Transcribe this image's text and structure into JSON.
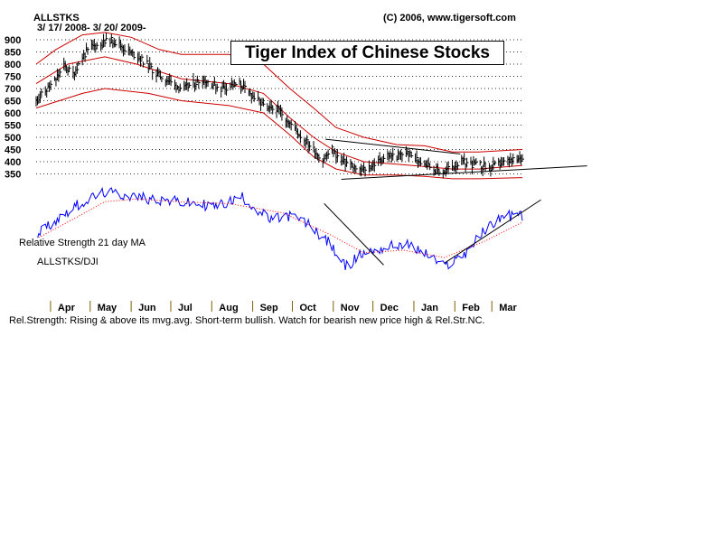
{
  "header": {
    "ticker": "ALLSTKS",
    "date_range": "3/ 17/ 2008- 3/ 20/ 2009-",
    "copyright": "(C) 2006, www.tigersoft.com"
  },
  "title": "Tiger Index of Chinese Stocks",
  "rs_labels": {
    "ma_label": "Relative Strength 21 day MA",
    "ratio_label": "ALLSTKS/DJI"
  },
  "footer_text": "Rel.Strength: Rising & above its mvg.avg. Short-term bullish. Watch for bearish new price high & Rel.Str.NC.",
  "colors": {
    "price_bars": "#000000",
    "bands": "#cc0000",
    "rs_line": "#0000ff",
    "rs_ma": "#ff0000",
    "grid": "#000000"
  },
  "chart_data": [
    {
      "type": "ohlc-bar",
      "title": "Tiger Index of Chinese Stocks",
      "y_ticks": [
        350,
        400,
        450,
        500,
        550,
        600,
        650,
        700,
        750,
        800,
        850,
        900
      ],
      "ylim": [
        300,
        900
      ],
      "x_ticks": [
        "Apr",
        "May",
        "Jun",
        "Jul",
        "Aug",
        "Sep",
        "Oct",
        "Nov",
        "Dec",
        "Jan",
        "Feb",
        "Mar"
      ],
      "grid": "horizontal dotted",
      "price_points": [
        [
          "2008-03-17",
          650
        ],
        [
          "2008-03-24",
          690
        ],
        [
          "2008-03-31",
          730
        ],
        [
          "2008-04-07",
          790
        ],
        [
          "2008-04-14",
          760
        ],
        [
          "2008-04-21",
          830
        ],
        [
          "2008-04-28",
          870
        ],
        [
          "2008-05-05",
          880
        ],
        [
          "2008-05-12",
          900
        ],
        [
          "2008-05-19",
          880
        ],
        [
          "2008-05-26",
          850
        ],
        [
          "2008-06-02",
          830
        ],
        [
          "2008-06-09",
          800
        ],
        [
          "2008-06-16",
          760
        ],
        [
          "2008-06-23",
          740
        ],
        [
          "2008-06-30",
          710
        ],
        [
          "2008-07-07",
          700
        ],
        [
          "2008-07-14",
          720
        ],
        [
          "2008-07-21",
          740
        ],
        [
          "2008-07-28",
          720
        ],
        [
          "2008-08-04",
          700
        ],
        [
          "2008-08-11",
          710
        ],
        [
          "2008-08-18",
          720
        ],
        [
          "2008-08-25",
          680
        ],
        [
          "2008-09-01",
          650
        ],
        [
          "2008-09-08",
          610
        ],
        [
          "2008-09-15",
          620
        ],
        [
          "2008-09-22",
          580
        ],
        [
          "2008-09-29",
          530
        ],
        [
          "2008-10-06",
          490
        ],
        [
          "2008-10-13",
          450
        ],
        [
          "2008-10-20",
          410
        ],
        [
          "2008-10-27",
          450
        ],
        [
          "2008-11-03",
          400
        ],
        [
          "2008-11-10",
          390
        ],
        [
          "2008-11-17",
          360
        ],
        [
          "2008-11-24",
          380
        ],
        [
          "2008-12-01",
          400
        ],
        [
          "2008-12-08",
          430
        ],
        [
          "2008-12-15",
          420
        ],
        [
          "2008-12-22",
          440
        ],
        [
          "2008-12-29",
          410
        ],
        [
          "2009-01-05",
          395
        ],
        [
          "2009-01-12",
          370
        ],
        [
          "2009-01-19",
          360
        ],
        [
          "2009-01-26",
          380
        ],
        [
          "2009-02-02",
          400
        ],
        [
          "2009-02-09",
          390
        ],
        [
          "2009-02-16",
          385
        ],
        [
          "2009-02-23",
          370
        ],
        [
          "2009-03-02",
          390
        ],
        [
          "2009-03-09",
          400
        ],
        [
          "2009-03-20",
          410
        ]
      ],
      "upper_band": [
        [
          "2008-03-17",
          800
        ],
        [
          "2008-04-01",
          860
        ],
        [
          "2008-04-21",
          920
        ],
        [
          "2008-05-08",
          930
        ],
        [
          "2008-05-28",
          910
        ],
        [
          "2008-06-18",
          860
        ],
        [
          "2008-07-05",
          840
        ],
        [
          "2008-08-10",
          840
        ],
        [
          "2008-09-05",
          800
        ],
        [
          "2008-09-25",
          700
        ],
        [
          "2008-10-13",
          620
        ],
        [
          "2008-10-30",
          540
        ],
        [
          "2008-11-20",
          500
        ],
        [
          "2008-12-15",
          470
        ],
        [
          "2009-01-05",
          465
        ],
        [
          "2009-01-26",
          440
        ],
        [
          "2009-02-15",
          440
        ],
        [
          "2009-03-20",
          450
        ]
      ],
      "middle_band": [
        [
          "2008-03-17",
          720
        ],
        [
          "2008-04-10",
          800
        ],
        [
          "2008-05-08",
          830
        ],
        [
          "2008-06-01",
          800
        ],
        [
          "2008-07-05",
          740
        ],
        [
          "2008-08-10",
          720
        ],
        [
          "2008-09-05",
          680
        ],
        [
          "2008-09-25",
          580
        ],
        [
          "2008-10-13",
          500
        ],
        [
          "2008-10-30",
          440
        ],
        [
          "2008-11-20",
          400
        ],
        [
          "2008-12-15",
          390
        ],
        [
          "2009-01-05",
          380
        ],
        [
          "2009-01-26",
          370
        ],
        [
          "2009-02-15",
          370
        ],
        [
          "2009-03-20",
          385
        ]
      ],
      "lower_band": [
        [
          "2008-03-17",
          620
        ],
        [
          "2008-04-21",
          680
        ],
        [
          "2008-05-08",
          700
        ],
        [
          "2008-06-10",
          680
        ],
        [
          "2008-07-05",
          650
        ],
        [
          "2008-08-10",
          630
        ],
        [
          "2008-09-05",
          600
        ],
        [
          "2008-09-25",
          510
        ],
        [
          "2008-10-13",
          420
        ],
        [
          "2008-10-30",
          370
        ],
        [
          "2008-11-20",
          345
        ],
        [
          "2008-12-15",
          345
        ],
        [
          "2009-01-05",
          340
        ],
        [
          "2009-01-26",
          330
        ],
        [
          "2009-02-15",
          330
        ],
        [
          "2009-03-20",
          335
        ]
      ],
      "trendlines": [
        {
          "from": [
            "2008-10-22",
            492
          ],
          "to": [
            "2009-02-01",
            432
          ]
        },
        {
          "from": [
            "2008-11-03",
            328
          ],
          "to": [
            "2009-05-08",
            383
          ]
        }
      ]
    },
    {
      "type": "line",
      "series": [
        {
          "name": "ALLSTKS/DJI",
          "kind": "relative-strength"
        },
        {
          "name": "Relative Strength 21 day MA",
          "kind": "moving-average"
        }
      ],
      "rs_points": [
        [
          "2008-03-17",
          0.55
        ],
        [
          "2008-04-01",
          0.7
        ],
        [
          "2008-04-15",
          0.85
        ],
        [
          "2008-05-08",
          1.0
        ],
        [
          "2008-06-01",
          0.95
        ],
        [
          "2008-07-01",
          0.9
        ],
        [
          "2008-08-01",
          0.85
        ],
        [
          "2008-08-20",
          0.95
        ],
        [
          "2008-09-10",
          0.7
        ],
        [
          "2008-09-25",
          0.75
        ],
        [
          "2008-10-10",
          0.65
        ],
        [
          "2008-10-25",
          0.45
        ],
        [
          "2008-11-06",
          0.2
        ],
        [
          "2008-11-20",
          0.35
        ],
        [
          "2008-12-05",
          0.4
        ],
        [
          "2008-12-20",
          0.45
        ],
        [
          "2009-01-05",
          0.35
        ],
        [
          "2009-01-20",
          0.2
        ],
        [
          "2009-02-05",
          0.35
        ],
        [
          "2009-02-20",
          0.6
        ],
        [
          "2009-03-05",
          0.75
        ],
        [
          "2009-03-20",
          0.75
        ]
      ],
      "ma_points": [
        [
          "2008-03-17",
          0.5
        ],
        [
          "2008-04-15",
          0.72
        ],
        [
          "2008-05-08",
          0.9
        ],
        [
          "2008-06-01",
          0.93
        ],
        [
          "2008-07-01",
          0.9
        ],
        [
          "2008-08-10",
          0.88
        ],
        [
          "2008-09-20",
          0.78
        ],
        [
          "2008-10-25",
          0.55
        ],
        [
          "2008-11-20",
          0.35
        ],
        [
          "2008-12-20",
          0.38
        ],
        [
          "2009-01-20",
          0.3
        ],
        [
          "2009-02-20",
          0.48
        ],
        [
          "2009-03-20",
          0.68
        ]
      ],
      "trendlines": [
        {
          "from": [
            "2008-10-21",
            0.88
          ],
          "to": [
            "2008-12-05",
            0.22
          ]
        },
        {
          "from": [
            "2009-01-20",
            0.24
          ],
          "to": [
            "2009-04-03",
            0.92
          ]
        }
      ]
    }
  ]
}
